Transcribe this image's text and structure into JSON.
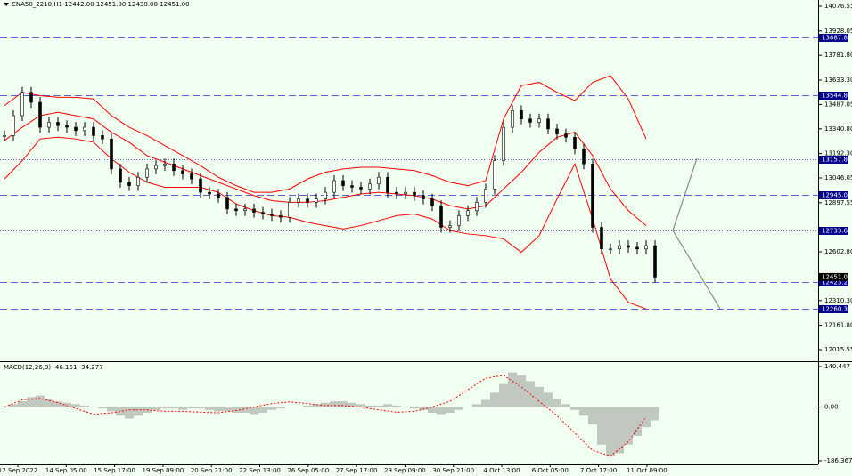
{
  "chart_data": {
    "type": "candlestick",
    "title": "CNA50_2210,H1  12442.00 12451.00 12430.00 12451.00",
    "ylim": [
      12015.55,
      14076.55
    ],
    "yticks": [
      14076.55,
      13928.05,
      {
        "value": 13781.8,
        "label": "13781.80"
      },
      {
        "value": 13633.3,
        "label": "13633.30"
      },
      13487.05,
      {
        "value": 13340.8,
        "label": "13340.80"
      },
      {
        "value": 13192.3,
        "label": "13192.30"
      },
      13046.05,
      12897.55,
      {
        "value": 12602.8,
        "label": "12602.80"
      },
      {
        "value": 12310.3,
        "label": "12310.30"
      },
      {
        "value": 12161.8,
        "label": "12161.80"
      },
      12015.55
    ],
    "levels": [
      {
        "value": 13887.88,
        "style": "dashed"
      },
      {
        "value": 13544.84,
        "style": "dashed"
      },
      {
        "value": 13157.84,
        "style": "dotted"
      },
      {
        "value": 12945.04,
        "style": "dashed"
      },
      {
        "value": 12733.68,
        "style": "dotted"
      },
      {
        "value": 12423.2,
        "label": "12423.20",
        "style": "dashed"
      },
      {
        "value": 12260.31,
        "style": "dashed"
      }
    ],
    "current_price": {
      "value": 12451,
      "label": "12451.00"
    },
    "categories": [
      "12 Sep 2022",
      "14 Sep 05:00",
      "15 Sep 17:00",
      "19 Sep 09:00",
      "20 Sep 21:00",
      "22 Sep 13:00",
      "26 Sep 05:00",
      "27 Sep 17:00",
      "29 Sep 09:00",
      "30 Sep 21:00",
      "4 Oct 13:00",
      "6 Oct 05:00",
      "7 Oct 17:00",
      "11 Oct 09:00"
    ],
    "close": [
      13300,
      13420,
      13560,
      13500,
      13350,
      13380,
      13360,
      13350,
      13330,
      13350,
      13300,
      13280,
      13100,
      13020,
      13000,
      13050,
      13100,
      13120,
      13130,
      13090,
      13070,
      13040,
      12960,
      12950,
      12930,
      12860,
      12850,
      12860,
      12840,
      12830,
      12820,
      12810,
      12900,
      12920,
      12900,
      12920,
      12960,
      13030,
      13000,
      12990,
      12980,
      13010,
      13050,
      12960,
      12950,
      12960,
      12940,
      12920,
      12880,
      12750,
      12760,
      12820,
      12850,
      12900,
      12980,
      13150,
      13350,
      13450,
      13400,
      13380,
      13400,
      13340,
      13310,
      13290,
      13220,
      13130,
      12750,
      12620,
      12620,
      12640,
      12630,
      12620,
      12640,
      12451
    ],
    "bollinger": {
      "color": "#ff0000",
      "upper": [
        13480,
        13560,
        13540,
        13530,
        13530,
        13520,
        13420,
        13350,
        13300,
        13240,
        13180,
        13120,
        13050,
        13000,
        12960,
        12960,
        12980,
        13040,
        13080,
        13100,
        13110,
        13110,
        13100,
        13090,
        13060,
        13020,
        13000,
        13030,
        13400,
        13600,
        13620,
        13560,
        13510,
        13620,
        13660,
        13520,
        13280
      ],
      "middle": [
        13270,
        13350,
        13420,
        13440,
        13420,
        13400,
        13320,
        13260,
        13180,
        13140,
        13100,
        13060,
        13020,
        12980,
        12940,
        12910,
        12900,
        12900,
        12910,
        12930,
        12950,
        12960,
        12950,
        12940,
        12920,
        12880,
        12860,
        12880,
        12980,
        13080,
        13200,
        13290,
        13320,
        13180,
        12980,
        12850,
        12760
      ],
      "lower": [
        13040,
        13150,
        13280,
        13290,
        13280,
        13260,
        13160,
        13080,
        13020,
        12990,
        12990,
        12990,
        12960,
        12890,
        12850,
        12820,
        12810,
        12780,
        12760,
        12740,
        12760,
        12790,
        12820,
        12830,
        12800,
        12730,
        12710,
        12700,
        12680,
        12600,
        12700,
        12920,
        13130,
        12800,
        12440,
        12300,
        12260
      ]
    },
    "macd": {
      "title": "MACD(12,26,9) -46.151 -34.277",
      "ylim": [
        -186.367,
        140.447
      ],
      "yticks": [
        140.447,
        {
          "value": 0,
          "label": "0.00"
        },
        -186.367
      ],
      "histogram": [
        0,
        10,
        20,
        35,
        40,
        30,
        20,
        15,
        10,
        5,
        0,
        -5,
        -15,
        -30,
        -40,
        -30,
        -20,
        -10,
        -5,
        -5,
        -10,
        -5,
        -5,
        -10,
        -15,
        -15,
        -20,
        -20,
        -25,
        -20,
        -10,
        -5,
        0,
        0,
        5,
        10,
        15,
        20,
        20,
        15,
        10,
        5,
        5,
        10,
        5,
        0,
        -5,
        -10,
        -20,
        -25,
        -20,
        -10,
        0,
        10,
        25,
        50,
        80,
        120,
        110,
        90,
        70,
        50,
        30,
        10,
        -10,
        -30,
        -60,
        -130,
        -170,
        -160,
        -130,
        -100,
        -70,
        -46.151
      ],
      "signal": [
        0,
        25,
        30,
        15,
        -5,
        -25,
        -20,
        -10,
        -10,
        -15,
        -15,
        -18,
        -20,
        -12,
        0,
        12,
        18,
        12,
        5,
        5,
        0,
        -10,
        -18,
        -15,
        0,
        20,
        60,
        100,
        110,
        70,
        20,
        -30,
        -90,
        -150,
        -170,
        -120,
        -34.277
      ]
    }
  }
}
